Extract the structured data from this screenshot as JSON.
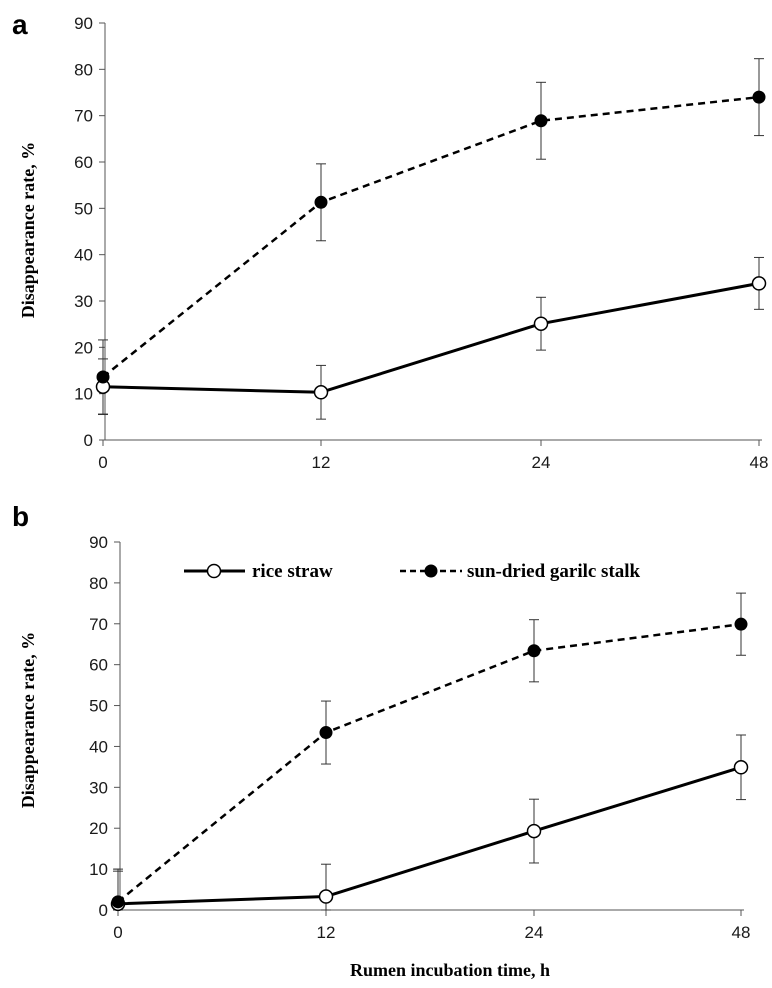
{
  "figure": {
    "xlabel": "Rumen incubation time, h"
  },
  "legend": {
    "entries": [
      {
        "label": "rice straw",
        "marker": "open-circle",
        "line": "solid"
      },
      {
        "label": "sun-dried garilc stalk",
        "marker": "filled-circle",
        "line": "dashed"
      }
    ]
  },
  "chart_data": [
    {
      "type": "line",
      "panel": "a",
      "x_categories": [
        "0",
        "12",
        "24",
        "48"
      ],
      "ylabel": "Disappearance rate, %",
      "ylim": [
        0,
        90
      ],
      "yticks": [
        0,
        10,
        20,
        30,
        40,
        50,
        60,
        70,
        80,
        90
      ],
      "grid": false,
      "series": [
        {
          "name": "rice straw",
          "values": [
            11.5,
            10.3,
            25.1,
            33.8
          ],
          "errors": [
            6.0,
            5.8,
            5.7,
            5.6
          ],
          "marker": "open-circle",
          "line": "solid",
          "color": "#000000"
        },
        {
          "name": "sun-dried garilc stalk",
          "values": [
            13.6,
            51.3,
            68.9,
            74.0
          ],
          "errors": [
            8.0,
            8.3,
            8.3,
            8.3
          ],
          "marker": "filled-circle",
          "line": "dashed",
          "color": "#000000"
        }
      ]
    },
    {
      "type": "line",
      "panel": "b",
      "x_categories": [
        "0",
        "12",
        "24",
        "48"
      ],
      "ylabel": "Disappearance rate, %",
      "xlabel": "Rumen incubation time, h",
      "ylim": [
        0,
        90
      ],
      "yticks": [
        0,
        10,
        20,
        30,
        40,
        50,
        60,
        70,
        80,
        90
      ],
      "grid": false,
      "legend_position": "top",
      "series": [
        {
          "name": "rice straw",
          "values": [
            1.5,
            3.3,
            19.3,
            34.9
          ],
          "errors": [
            8.0,
            7.9,
            7.8,
            7.9
          ],
          "marker": "open-circle",
          "line": "solid",
          "color": "#000000"
        },
        {
          "name": "sun-dried garilc stalk",
          "values": [
            2.0,
            43.4,
            63.4,
            69.9
          ],
          "errors": [
            8.0,
            7.7,
            7.6,
            7.6
          ],
          "marker": "filled-circle",
          "line": "dashed",
          "color": "#000000"
        }
      ]
    }
  ]
}
